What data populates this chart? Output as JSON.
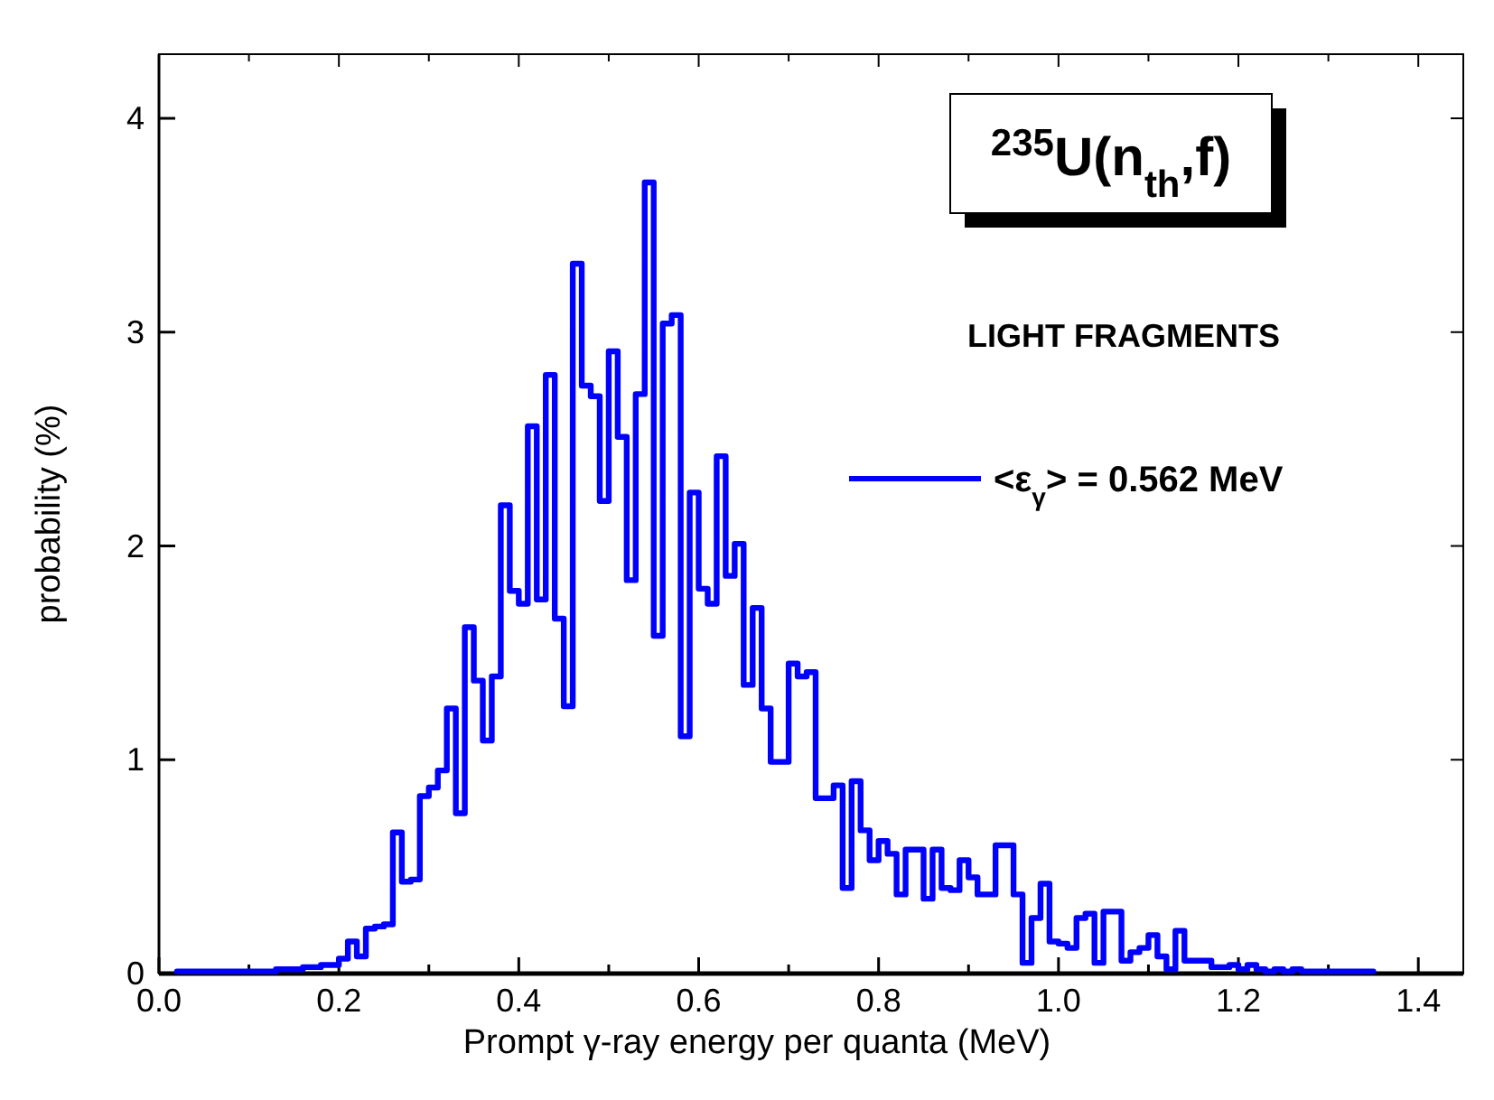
{
  "chart_data": {
    "type": "histogram",
    "xlabel": "Prompt γ-ray energy per quanta (MeV)",
    "ylabel": "probability (%)",
    "annotations": [
      "$^{235}$U(n$_{th}$,f)",
      "LIGHT FRAGMENTS"
    ],
    "legend": "right",
    "bins": [
      0.02,
      0.03,
      0.04,
      0.05,
      0.06,
      0.07,
      0.08,
      0.09,
      0.1,
      0.11,
      0.12,
      0.13,
      0.14,
      0.15,
      0.16,
      0.17,
      0.18,
      0.19,
      0.2,
      0.21,
      0.22,
      0.23,
      0.24,
      0.25,
      0.26,
      0.27,
      0.28,
      0.29,
      0.3,
      0.31,
      0.32,
      0.33,
      0.34,
      0.35,
      0.36,
      0.37,
      0.38,
      0.39,
      0.4,
      0.41,
      0.42,
      0.43,
      0.44,
      0.45,
      0.46,
      0.47,
      0.48,
      0.49,
      0.5,
      0.51,
      0.52,
      0.53,
      0.54,
      0.55,
      0.56,
      0.57,
      0.58,
      0.59,
      0.6,
      0.61,
      0.62,
      0.63,
      0.64,
      0.65,
      0.66,
      0.67,
      0.68,
      0.69,
      0.7,
      0.71,
      0.72,
      0.73,
      0.74,
      0.75,
      0.76,
      0.77,
      0.78,
      0.79,
      0.8,
      0.81,
      0.82,
      0.83,
      0.84,
      0.85,
      0.86,
      0.87,
      0.88,
      0.89,
      0.9,
      0.91,
      0.92,
      0.93,
      0.94,
      0.95,
      0.96,
      0.97,
      0.98,
      0.99,
      1.0,
      1.01,
      1.02,
      1.03,
      1.04,
      1.05,
      1.06,
      1.07,
      1.08,
      1.09,
      1.1,
      1.11,
      1.12,
      1.13,
      1.14,
      1.15,
      1.16,
      1.17,
      1.18,
      1.19,
      1.2,
      1.21,
      1.22,
      1.23,
      1.24,
      1.25,
      1.26,
      1.27,
      1.28,
      1.29,
      1.3,
      1.31,
      1.32,
      1.33,
      1.34,
      1.35
    ],
    "series": [
      {
        "name": "<ε$_{γ}$> = 0.562 MeV",
        "color": "#0000ff",
        "values": [
          0.01,
          0.01,
          0.01,
          0.01,
          0.01,
          0.01,
          0.01,
          0.01,
          0.01,
          0.01,
          0.01,
          0.02,
          0.02,
          0.02,
          0.03,
          0.03,
          0.04,
          0.04,
          0.07,
          0.15,
          0.08,
          0.21,
          0.22,
          0.23,
          0.66,
          0.43,
          0.44,
          0.83,
          0.87,
          0.95,
          1.24,
          0.75,
          1.62,
          1.37,
          1.09,
          1.39,
          2.19,
          1.79,
          1.73,
          2.56,
          1.75,
          2.8,
          1.66,
          1.25,
          3.32,
          2.75,
          2.7,
          2.21,
          2.91,
          2.51,
          1.84,
          2.71,
          3.7,
          1.58,
          3.04,
          3.08,
          1.11,
          2.25,
          1.8,
          1.73,
          2.42,
          1.86,
          2.01,
          1.35,
          1.71,
          1.24,
          0.99,
          0.99,
          1.45,
          1.39,
          1.41,
          0.82,
          0.82,
          0.88,
          0.4,
          0.9,
          0.67,
          0.53,
          0.62,
          0.56,
          0.37,
          0.58,
          0.58,
          0.35,
          0.58,
          0.4,
          0.39,
          0.53,
          0.45,
          0.37,
          0.37,
          0.6,
          0.6,
          0.37,
          0.05,
          0.26,
          0.42,
          0.15,
          0.14,
          0.12,
          0.26,
          0.28,
          0.05,
          0.29,
          0.29,
          0.06,
          0.1,
          0.12,
          0.18,
          0.08,
          0.02,
          0.2,
          0.06,
          0.06,
          0.06,
          0.03,
          0.03,
          0.04,
          0.02,
          0.04,
          0.02,
          0.01,
          0.02,
          0.01,
          0.02,
          0.01,
          0.01,
          0.01,
          0.01,
          0.01,
          0.01,
          0.01,
          0.01
        ]
      }
    ],
    "xlim": [
      0,
      1.45
    ],
    "xticks": [
      {
        "value": 0,
        "label": "0.0"
      },
      {
        "value": 0.1,
        "label": null
      },
      {
        "value": 0.2,
        "label": "0.2"
      },
      {
        "value": 0.3,
        "label": null
      },
      {
        "value": 0.4,
        "label": "0.4"
      },
      {
        "value": 0.5,
        "label": null
      },
      {
        "value": 0.6,
        "label": "0.6"
      },
      {
        "value": 0.7,
        "label": null
      },
      {
        "value": 0.8,
        "label": "0.8"
      },
      {
        "value": 0.9,
        "label": null
      },
      {
        "value": 1,
        "label": "1.0"
      },
      {
        "value": 1.1,
        "label": null
      },
      {
        "value": 1.2,
        "label": "1.2"
      },
      {
        "value": 1.3,
        "label": null
      },
      {
        "value": 1.4,
        "label": "1.4"
      }
    ],
    "ylim": [
      0,
      4.3
    ],
    "yticks": [
      0,
      1,
      2,
      3,
      4
    ]
  }
}
